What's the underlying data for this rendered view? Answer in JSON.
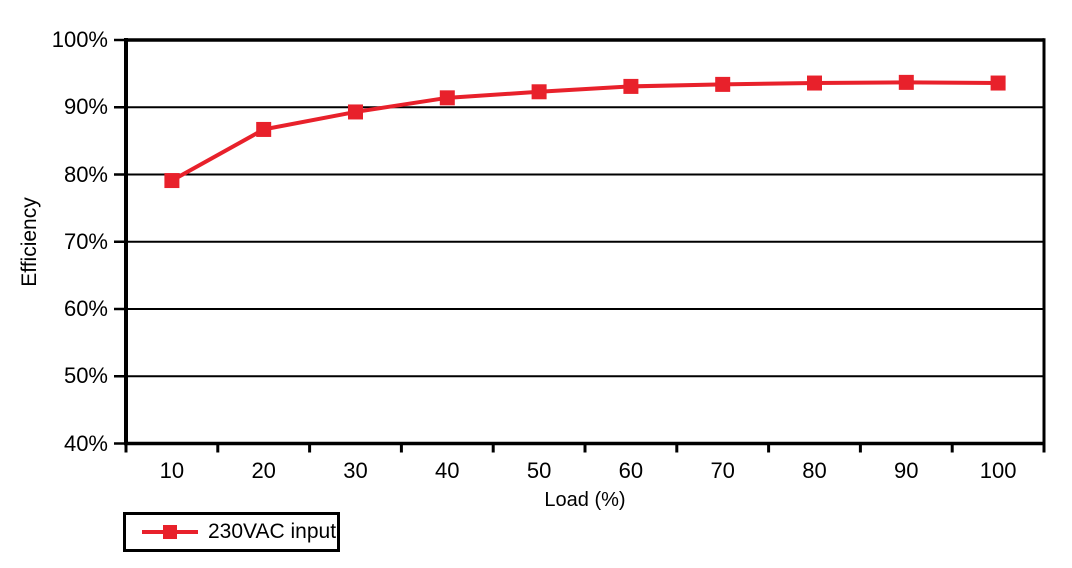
{
  "page": {
    "background": "#ffffff"
  },
  "chart_data": {
    "type": "line",
    "title": "",
    "x": [
      10,
      20,
      30,
      40,
      50,
      60,
      70,
      80,
      90,
      100
    ],
    "xtick_labels": [
      "10",
      "20",
      "30",
      "40",
      "50",
      "60",
      "70",
      "80",
      "90",
      "100"
    ],
    "series": [
      {
        "name": "230VAC input",
        "color": "#e8212b",
        "marker": "square",
        "values": [
          79.1,
          86.7,
          89.3,
          91.4,
          92.3,
          93.1,
          93.4,
          93.6,
          93.7,
          93.6
        ]
      }
    ],
    "xlabel": "Load (%)",
    "ylabel": "Efficiency",
    "ylim": [
      40,
      100
    ],
    "ytick_step": 10,
    "ytick_labels": [
      "40%",
      "50%",
      "60%",
      "70%",
      "80%",
      "90%",
      "100%"
    ],
    "grid": "horizontal-only",
    "axis_color": "#000000",
    "plot_border": "left-right-top-bottom",
    "legend": {
      "position": "bottom-left",
      "border_color": "#000000",
      "items": [
        {
          "label": "230VAC input",
          "color": "#e8212b",
          "marker": "square-on-line"
        }
      ]
    }
  }
}
